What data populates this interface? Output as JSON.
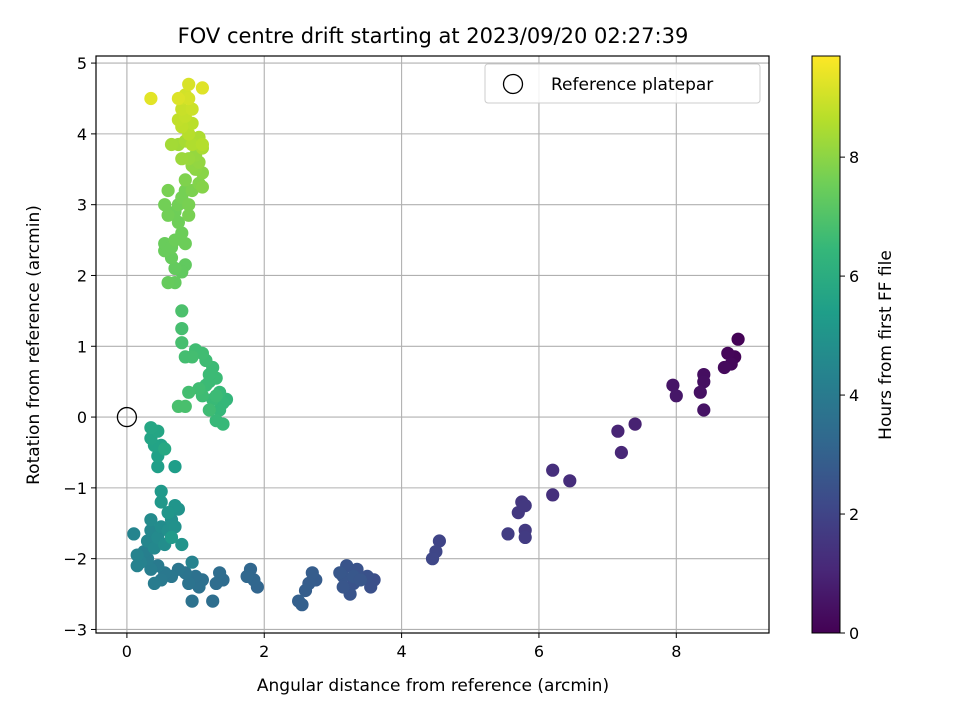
{
  "chart_data": {
    "type": "scatter",
    "title": "FOV centre drift starting at 2023/09/20 02:27:39",
    "xlabel": "Angular distance from reference (arcmin)",
    "ylabel": "Rotation from reference (arcmin)",
    "xlim": [
      -0.45,
      9.35
    ],
    "ylim": [
      -3.05,
      5.1
    ],
    "xticks": [
      0,
      2,
      4,
      6,
      8
    ],
    "yticks": [
      -3,
      -2,
      -1,
      0,
      1,
      2,
      3,
      4,
      5
    ],
    "grid": true,
    "legend": {
      "label": "Reference platepar",
      "position": "top-right",
      "marker": "open-circle"
    },
    "reference_point": {
      "x": 0,
      "y": 0
    },
    "colorbar": {
      "label": "Hours from first FF file",
      "range": [
        0,
        9.7
      ],
      "ticks": [
        0,
        2,
        4,
        6,
        8
      ],
      "colormap": "viridis",
      "stops": [
        "#440154",
        "#482878",
        "#3e4989",
        "#31688e",
        "#26828e",
        "#1f9e89",
        "#35b779",
        "#6ece58",
        "#b5de2b",
        "#fde725"
      ]
    },
    "points": [
      {
        "x": 8.9,
        "y": 1.1,
        "h": 0.05
      },
      {
        "x": 8.85,
        "y": 0.85,
        "h": 0.1
      },
      {
        "x": 8.75,
        "y": 0.9,
        "h": 0.15
      },
      {
        "x": 8.8,
        "y": 0.75,
        "h": 0.2
      },
      {
        "x": 8.7,
        "y": 0.7,
        "h": 0.25
      },
      {
        "x": 8.4,
        "y": 0.6,
        "h": 0.35
      },
      {
        "x": 8.4,
        "y": 0.5,
        "h": 0.4
      },
      {
        "x": 8.35,
        "y": 0.35,
        "h": 0.45
      },
      {
        "x": 8.4,
        "y": 0.1,
        "h": 0.5
      },
      {
        "x": 7.95,
        "y": 0.45,
        "h": 0.55
      },
      {
        "x": 8.0,
        "y": 0.3,
        "h": 0.6
      },
      {
        "x": 7.4,
        "y": -0.1,
        "h": 0.9
      },
      {
        "x": 7.15,
        "y": -0.2,
        "h": 1.0
      },
      {
        "x": 7.2,
        "y": -0.5,
        "h": 1.05
      },
      {
        "x": 6.2,
        "y": -0.75,
        "h": 1.3
      },
      {
        "x": 6.45,
        "y": -0.9,
        "h": 1.25
      },
      {
        "x": 6.2,
        "y": -1.1,
        "h": 1.35
      },
      {
        "x": 5.75,
        "y": -1.2,
        "h": 1.55
      },
      {
        "x": 5.7,
        "y": -1.35,
        "h": 1.6
      },
      {
        "x": 5.8,
        "y": -1.25,
        "h": 1.6
      },
      {
        "x": 5.8,
        "y": -1.6,
        "h": 1.65
      },
      {
        "x": 5.8,
        "y": -1.7,
        "h": 1.7
      },
      {
        "x": 5.55,
        "y": -1.65,
        "h": 1.75
      },
      {
        "x": 4.55,
        "y": -1.75,
        "h": 2.0
      },
      {
        "x": 4.5,
        "y": -1.9,
        "h": 2.05
      },
      {
        "x": 4.45,
        "y": -2.0,
        "h": 2.1
      },
      {
        "x": 3.6,
        "y": -2.3,
        "h": 2.35
      },
      {
        "x": 3.55,
        "y": -2.4,
        "h": 2.4
      },
      {
        "x": 3.5,
        "y": -2.25,
        "h": 2.45
      },
      {
        "x": 3.35,
        "y": -2.15,
        "h": 2.5
      },
      {
        "x": 3.3,
        "y": -2.35,
        "h": 2.5
      },
      {
        "x": 3.25,
        "y": -2.5,
        "h": 2.55
      },
      {
        "x": 3.2,
        "y": -2.1,
        "h": 2.55
      },
      {
        "x": 3.15,
        "y": -2.25,
        "h": 2.6
      },
      {
        "x": 3.15,
        "y": -2.4,
        "h": 2.6
      },
      {
        "x": 3.1,
        "y": -2.2,
        "h": 2.65
      },
      {
        "x": 3.3,
        "y": -2.25,
        "h": 2.65
      },
      {
        "x": 3.4,
        "y": -2.3,
        "h": 2.6
      },
      {
        "x": 2.75,
        "y": -2.3,
        "h": 2.8
      },
      {
        "x": 2.7,
        "y": -2.2,
        "h": 2.85
      },
      {
        "x": 2.65,
        "y": -2.35,
        "h": 2.85
      },
      {
        "x": 2.6,
        "y": -2.45,
        "h": 2.9
      },
      {
        "x": 2.5,
        "y": -2.6,
        "h": 2.95
      },
      {
        "x": 2.55,
        "y": -2.65,
        "h": 2.95
      },
      {
        "x": 1.9,
        "y": -2.4,
        "h": 3.15
      },
      {
        "x": 1.85,
        "y": -2.3,
        "h": 3.2
      },
      {
        "x": 1.8,
        "y": -2.15,
        "h": 3.2
      },
      {
        "x": 1.75,
        "y": -2.25,
        "h": 3.25
      },
      {
        "x": 1.4,
        "y": -2.3,
        "h": 3.4
      },
      {
        "x": 1.35,
        "y": -2.2,
        "h": 3.45
      },
      {
        "x": 1.3,
        "y": -2.35,
        "h": 3.45
      },
      {
        "x": 1.25,
        "y": -2.6,
        "h": 3.5
      },
      {
        "x": 1.1,
        "y": -2.3,
        "h": 3.55
      },
      {
        "x": 1.05,
        "y": -2.4,
        "h": 3.6
      },
      {
        "x": 1.0,
        "y": -2.25,
        "h": 3.6
      },
      {
        "x": 0.95,
        "y": -2.6,
        "h": 3.65
      },
      {
        "x": 0.9,
        "y": -2.35,
        "h": 3.7
      },
      {
        "x": 0.85,
        "y": -2.2,
        "h": 3.75
      },
      {
        "x": 0.75,
        "y": -2.15,
        "h": 3.8
      },
      {
        "x": 0.65,
        "y": -2.25,
        "h": 3.85
      },
      {
        "x": 0.55,
        "y": -2.2,
        "h": 3.9
      },
      {
        "x": 0.5,
        "y": -2.3,
        "h": 3.95
      },
      {
        "x": 0.45,
        "y": -2.1,
        "h": 4.0
      },
      {
        "x": 0.4,
        "y": -2.35,
        "h": 4.05
      },
      {
        "x": 0.35,
        "y": -2.15,
        "h": 4.1
      },
      {
        "x": 0.3,
        "y": -2.0,
        "h": 4.15
      },
      {
        "x": 0.25,
        "y": -1.9,
        "h": 4.2
      },
      {
        "x": 0.2,
        "y": -2.05,
        "h": 4.25
      },
      {
        "x": 0.15,
        "y": -2.1,
        "h": 4.3
      },
      {
        "x": 0.15,
        "y": -1.95,
        "h": 4.35
      },
      {
        "x": 0.1,
        "y": -1.65,
        "h": 4.4
      },
      {
        "x": 0.95,
        "y": -2.05,
        "h": 4.3
      },
      {
        "x": 0.3,
        "y": -1.75,
        "h": 4.45
      },
      {
        "x": 0.35,
        "y": -1.6,
        "h": 4.5
      },
      {
        "x": 0.4,
        "y": -1.85,
        "h": 4.55
      },
      {
        "x": 0.45,
        "y": -1.7,
        "h": 4.6
      },
      {
        "x": 0.35,
        "y": -1.45,
        "h": 4.65
      },
      {
        "x": 0.5,
        "y": -1.55,
        "h": 4.7
      },
      {
        "x": 0.55,
        "y": -1.8,
        "h": 4.75
      },
      {
        "x": 0.6,
        "y": -1.6,
        "h": 4.8
      },
      {
        "x": 0.65,
        "y": -1.45,
        "h": 4.85
      },
      {
        "x": 0.7,
        "y": -1.55,
        "h": 4.9
      },
      {
        "x": 0.75,
        "y": -1.3,
        "h": 4.95
      },
      {
        "x": 0.8,
        "y": -1.8,
        "h": 5.0
      },
      {
        "x": 0.7,
        "y": -1.25,
        "h": 5.05
      },
      {
        "x": 0.6,
        "y": -1.35,
        "h": 5.1
      },
      {
        "x": 0.5,
        "y": -1.2,
        "h": 5.15
      },
      {
        "x": 0.5,
        "y": -1.05,
        "h": 5.2
      },
      {
        "x": 0.65,
        "y": -1.7,
        "h": 5.25
      },
      {
        "x": 0.7,
        "y": -0.7,
        "h": 5.4
      },
      {
        "x": 0.45,
        "y": -0.7,
        "h": 5.45
      },
      {
        "x": 0.45,
        "y": -0.55,
        "h": 5.5
      },
      {
        "x": 0.5,
        "y": -0.4,
        "h": 5.55
      },
      {
        "x": 0.4,
        "y": -0.4,
        "h": 5.6
      },
      {
        "x": 0.35,
        "y": -0.3,
        "h": 5.65
      },
      {
        "x": 0.45,
        "y": -0.2,
        "h": 5.7
      },
      {
        "x": 0.35,
        "y": -0.15,
        "h": 5.75
      },
      {
        "x": 0.55,
        "y": -0.45,
        "h": 5.8
      },
      {
        "x": 1.45,
        "y": 0.25,
        "h": 6.4
      },
      {
        "x": 1.4,
        "y": 0.2,
        "h": 6.45
      },
      {
        "x": 1.35,
        "y": 0.1,
        "h": 6.45
      },
      {
        "x": 1.4,
        "y": -0.1,
        "h": 6.5
      },
      {
        "x": 1.3,
        "y": -0.05,
        "h": 6.5
      },
      {
        "x": 1.35,
        "y": 0.35,
        "h": 6.5
      },
      {
        "x": 1.25,
        "y": 0.25,
        "h": 6.55
      },
      {
        "x": 1.2,
        "y": 0.5,
        "h": 6.55
      },
      {
        "x": 1.3,
        "y": 0.55,
        "h": 6.6
      },
      {
        "x": 1.25,
        "y": 0.7,
        "h": 6.6
      },
      {
        "x": 1.15,
        "y": 0.45,
        "h": 6.6
      },
      {
        "x": 1.1,
        "y": 0.3,
        "h": 6.65
      },
      {
        "x": 1.2,
        "y": 0.1,
        "h": 6.65
      },
      {
        "x": 1.15,
        "y": 0.8,
        "h": 6.65
      },
      {
        "x": 1.1,
        "y": 0.9,
        "h": 6.7
      },
      {
        "x": 1.05,
        "y": 0.4,
        "h": 6.7
      },
      {
        "x": 1.0,
        "y": 0.95,
        "h": 6.7
      },
      {
        "x": 0.95,
        "y": 0.85,
        "h": 6.75
      },
      {
        "x": 0.9,
        "y": 0.35,
        "h": 6.75
      },
      {
        "x": 0.85,
        "y": 0.85,
        "h": 6.75
      },
      {
        "x": 1.3,
        "y": 0.3,
        "h": 6.6
      },
      {
        "x": 1.2,
        "y": 0.6,
        "h": 6.6
      },
      {
        "x": 0.8,
        "y": 1.05,
        "h": 6.8
      },
      {
        "x": 0.8,
        "y": 1.25,
        "h": 6.8
      },
      {
        "x": 0.75,
        "y": 0.15,
        "h": 6.85
      },
      {
        "x": 0.85,
        "y": 0.15,
        "h": 6.85
      },
      {
        "x": 0.8,
        "y": 1.5,
        "h": 6.9
      },
      {
        "x": 0.85,
        "y": 2.15,
        "h": 7.3
      },
      {
        "x": 0.8,
        "y": 2.05,
        "h": 7.3
      },
      {
        "x": 0.7,
        "y": 2.1,
        "h": 7.35
      },
      {
        "x": 0.7,
        "y": 1.9,
        "h": 7.35
      },
      {
        "x": 0.6,
        "y": 1.9,
        "h": 7.4
      },
      {
        "x": 0.65,
        "y": 2.25,
        "h": 7.4
      },
      {
        "x": 0.55,
        "y": 2.35,
        "h": 7.45
      },
      {
        "x": 0.55,
        "y": 2.45,
        "h": 7.45
      },
      {
        "x": 0.65,
        "y": 2.4,
        "h": 7.45
      },
      {
        "x": 0.7,
        "y": 2.5,
        "h": 7.5
      },
      {
        "x": 0.85,
        "y": 2.45,
        "h": 7.5
      },
      {
        "x": 0.8,
        "y": 2.6,
        "h": 7.5
      },
      {
        "x": 0.75,
        "y": 2.75,
        "h": 7.55
      },
      {
        "x": 0.7,
        "y": 2.9,
        "h": 7.55
      },
      {
        "x": 0.6,
        "y": 2.85,
        "h": 7.6
      },
      {
        "x": 0.55,
        "y": 3.0,
        "h": 7.6
      },
      {
        "x": 0.75,
        "y": 3.0,
        "h": 7.6
      },
      {
        "x": 0.8,
        "y": 3.1,
        "h": 7.65
      },
      {
        "x": 0.85,
        "y": 3.2,
        "h": 7.65
      },
      {
        "x": 0.9,
        "y": 3.0,
        "h": 7.7
      },
      {
        "x": 0.9,
        "y": 2.85,
        "h": 7.7
      },
      {
        "x": 0.6,
        "y": 3.2,
        "h": 7.7
      },
      {
        "x": 0.95,
        "y": 3.2,
        "h": 7.75
      },
      {
        "x": 0.85,
        "y": 3.35,
        "h": 7.8
      },
      {
        "x": 1.05,
        "y": 3.3,
        "h": 7.85
      },
      {
        "x": 1.1,
        "y": 3.25,
        "h": 7.9
      },
      {
        "x": 1.1,
        "y": 3.45,
        "h": 7.95
      },
      {
        "x": 1.0,
        "y": 3.5,
        "h": 8.0
      },
      {
        "x": 0.95,
        "y": 3.55,
        "h": 8.05
      },
      {
        "x": 1.05,
        "y": 3.6,
        "h": 8.1
      },
      {
        "x": 1.0,
        "y": 3.7,
        "h": 8.15
      },
      {
        "x": 0.9,
        "y": 3.65,
        "h": 8.2
      },
      {
        "x": 0.8,
        "y": 3.65,
        "h": 8.25
      },
      {
        "x": 0.75,
        "y": 3.85,
        "h": 8.3
      },
      {
        "x": 0.65,
        "y": 3.85,
        "h": 8.35
      },
      {
        "x": 0.85,
        "y": 3.9,
        "h": 8.4
      },
      {
        "x": 1.1,
        "y": 3.8,
        "h": 8.45
      },
      {
        "x": 1.05,
        "y": 3.95,
        "h": 8.5
      },
      {
        "x": 0.95,
        "y": 3.85,
        "h": 8.55
      },
      {
        "x": 1.1,
        "y": 3.85,
        "h": 8.6
      },
      {
        "x": 0.9,
        "y": 4.0,
        "h": 8.65
      },
      {
        "x": 0.95,
        "y": 4.15,
        "h": 8.7
      },
      {
        "x": 0.8,
        "y": 4.1,
        "h": 8.75
      },
      {
        "x": 0.75,
        "y": 4.2,
        "h": 8.8
      },
      {
        "x": 0.85,
        "y": 4.25,
        "h": 8.85
      },
      {
        "x": 0.8,
        "y": 4.35,
        "h": 8.9
      },
      {
        "x": 0.95,
        "y": 4.35,
        "h": 8.95
      },
      {
        "x": 0.8,
        "y": 4.5,
        "h": 9.0
      },
      {
        "x": 0.85,
        "y": 4.55,
        "h": 9.05
      },
      {
        "x": 0.9,
        "y": 4.5,
        "h": 9.1
      },
      {
        "x": 0.9,
        "y": 4.7,
        "h": 9.15
      },
      {
        "x": 0.75,
        "y": 4.5,
        "h": 9.2
      },
      {
        "x": 1.1,
        "y": 4.65,
        "h": 9.25
      },
      {
        "x": 0.35,
        "y": 4.5,
        "h": 9.3
      }
    ]
  }
}
